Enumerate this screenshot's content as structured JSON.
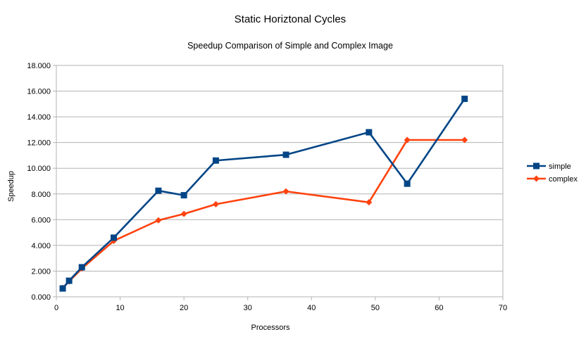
{
  "chart_data": {
    "type": "line",
    "title": "Static Horiztonal Cycles",
    "subtitle": "Speedup Comparison of Simple and Complex Image",
    "xlabel": "Processors",
    "ylabel": "Speedup",
    "xlim": [
      0,
      70
    ],
    "ylim": [
      0,
      18
    ],
    "xticks": [
      0,
      10,
      20,
      30,
      40,
      50,
      60,
      70
    ],
    "yticks": [
      0,
      2,
      4,
      6,
      8,
      10,
      12,
      14,
      16,
      18
    ],
    "ytick_labels": [
      "0.000",
      "2.000",
      "4.000",
      "6.000",
      "8.000",
      "10.000",
      "12.000",
      "14.000",
      "16.000",
      "18.000"
    ],
    "grid": "horizontal",
    "legend_position": "right",
    "series": [
      {
        "name": "simple",
        "color": "#004586",
        "marker": "square",
        "x": [
          1,
          2,
          4,
          9,
          16,
          20,
          25,
          36,
          49,
          55,
          64
        ],
        "y": [
          0.65,
          1.25,
          2.3,
          4.6,
          8.25,
          7.9,
          10.6,
          11.05,
          12.8,
          8.8,
          15.4
        ]
      },
      {
        "name": "complex",
        "color": "#ff420e",
        "marker": "diamond",
        "x": [
          1,
          2,
          4,
          9,
          16,
          20,
          25,
          36,
          49,
          55,
          64
        ],
        "y": [
          0.7,
          1.2,
          2.2,
          4.35,
          5.95,
          6.45,
          7.2,
          8.2,
          7.35,
          12.2,
          12.2
        ]
      }
    ]
  }
}
